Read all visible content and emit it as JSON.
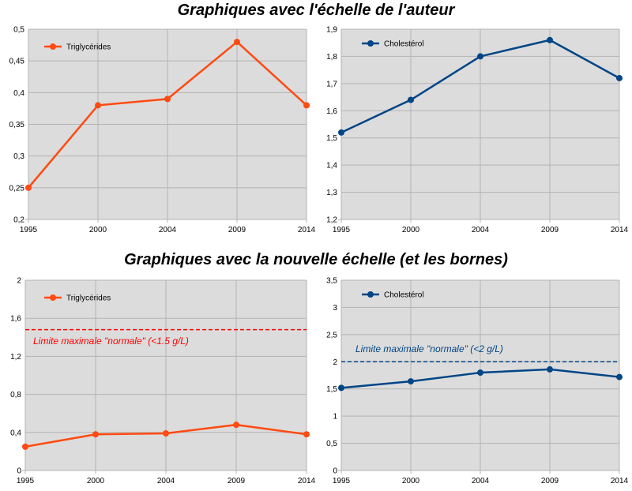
{
  "headings": {
    "top": "Graphiques avec l'échelle de l'auteur",
    "bottom": "Graphiques avec la nouvelle échelle (et les bornes)"
  },
  "colors": {
    "triglycerides": "#ff4a12",
    "cholesterol": "#004586",
    "plot_background": "#dcdcdc",
    "grid": "#b3b3b3"
  },
  "chart_data": [
    {
      "type": "line",
      "panel": "top-left",
      "title": "",
      "x": [
        "1995",
        "2000",
        "2004",
        "2009",
        "2014"
      ],
      "series": [
        {
          "name": "Triglycérides",
          "values": [
            0.25,
            0.38,
            0.39,
            0.48,
            0.38
          ],
          "color": "#ff4a12"
        }
      ],
      "ylim": [
        0.2,
        0.5
      ],
      "yticks": [
        "0,2",
        "0,25",
        "0,3",
        "0,35",
        "0,4",
        "0,45",
        "0,5"
      ],
      "grid": true,
      "legend": "top-left"
    },
    {
      "type": "line",
      "panel": "top-right",
      "title": "",
      "x": [
        "1995",
        "2000",
        "2004",
        "2009",
        "2014"
      ],
      "series": [
        {
          "name": "Cholestérol",
          "values": [
            1.52,
            1.64,
            1.8,
            1.86,
            1.72
          ],
          "color": "#004586"
        }
      ],
      "ylim": [
        1.2,
        1.9
      ],
      "yticks": [
        "1,2",
        "1,3",
        "1,4",
        "1,5",
        "1,6",
        "1,7",
        "1,8",
        "1,9"
      ],
      "grid": true,
      "legend": "top-left"
    },
    {
      "type": "line",
      "panel": "bottom-left",
      "title": "",
      "x": [
        "1995",
        "2000",
        "2004",
        "2009",
        "2014"
      ],
      "series": [
        {
          "name": "Triglycérides",
          "values": [
            0.25,
            0.38,
            0.39,
            0.48,
            0.38
          ],
          "color": "#ff4a12"
        }
      ],
      "ylim": [
        0,
        2
      ],
      "yticks": [
        "0",
        "0,4",
        "0,8",
        "1,2",
        "1,6",
        "2"
      ],
      "grid": true,
      "legend": "top-left",
      "reference_line": {
        "value": 1.48,
        "label": "Limite maximale \"normale\" (<1.5 g/L)",
        "color": "#ff0000"
      }
    },
    {
      "type": "line",
      "panel": "bottom-right",
      "title": "",
      "x": [
        "1995",
        "2000",
        "2004",
        "2009",
        "2014"
      ],
      "series": [
        {
          "name": "Cholestérol",
          "values": [
            1.52,
            1.64,
            1.8,
            1.86,
            1.72
          ],
          "color": "#004586"
        }
      ],
      "ylim": [
        0,
        3.5
      ],
      "yticks": [
        "0",
        "0,5",
        "1",
        "1,5",
        "2",
        "2,5",
        "3",
        "3,5"
      ],
      "grid": true,
      "legend": "top-left",
      "reference_line": {
        "value": 2,
        "label": "Limite maximale \"normale\" (<2 g/L)",
        "color": "#004586"
      }
    }
  ]
}
